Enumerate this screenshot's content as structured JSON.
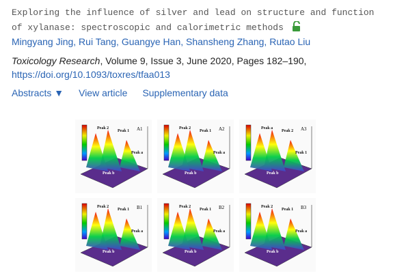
{
  "article": {
    "title": "Exploring the influence of silver and lead on structure and function of xylanase: spectroscopic and calorimetric methods",
    "authors": "Mingyang Jing, Rui Tang, Guangye Han, Shansheng Zhang, Rutao Liu",
    "journal": "Toxicology Research",
    "details": ", Volume 9, Issue 3, June 2020, Pages 182–190,",
    "doi": "https://doi.org/10.1093/toxres/tfaa013",
    "links": [
      "Abstracts ▼",
      "View article",
      "Supplementary data"
    ]
  },
  "figure": {
    "panels": [
      {
        "label": "A1",
        "peaks": [
          "Peak 2",
          "Peak 1",
          "Peak a",
          "Peak b"
        ]
      },
      {
        "label": "A2",
        "peaks": [
          "Peak 2",
          "Peak 1",
          "Peak a",
          "Peak b"
        ]
      },
      {
        "label": "A3",
        "peaks": [
          "Peak a",
          "Peak 2",
          "Peak 1",
          "Peak b"
        ]
      },
      {
        "label": "B1",
        "peaks": [
          "Peak 2",
          "Peak 1",
          "Peak a",
          "Peak b"
        ]
      },
      {
        "label": "B2",
        "peaks": [
          "Peak 2",
          "Peak 1",
          "Peak a",
          "Peak b"
        ]
      },
      {
        "label": "B3",
        "peaks": [
          "Peak 2",
          "Peak 1",
          "Peak a",
          "Peak b"
        ]
      }
    ]
  }
}
